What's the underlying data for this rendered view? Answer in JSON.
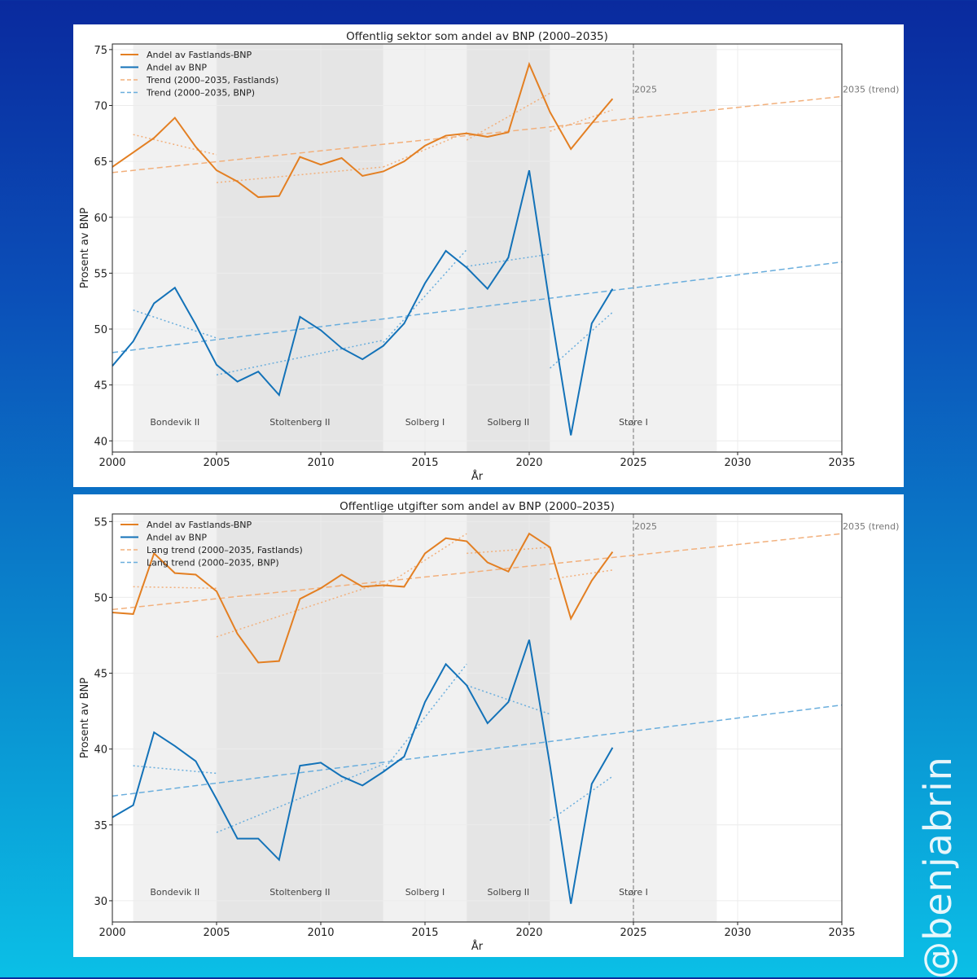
{
  "watermark": "@benjabrin",
  "colors": {
    "orange": "#e37f22",
    "blue": "#1372b8",
    "orange_light": "#f2b07c",
    "blue_light": "#6aaedd",
    "shade_light": "#f1f1f1",
    "shade_dark": "#e5e5e5",
    "grid": "#ececec",
    "marker": "#888888"
  },
  "chart_data": [
    {
      "type": "line",
      "title": "Offentlig sektor som andel av BNP (2000–2035)",
      "xlabel": "År",
      "ylabel": "Prosent av BNP",
      "xlim": [
        2000,
        2035
      ],
      "ylim": [
        39,
        75.5
      ],
      "xticks": [
        "2000",
        "2005",
        "2010",
        "2015",
        "2020",
        "2025",
        "2030",
        "2035"
      ],
      "yticks": [
        "40",
        "45",
        "50",
        "55",
        "60",
        "65",
        "70",
        "75"
      ],
      "legend_position": "top-left",
      "grid": true,
      "periods": [
        {
          "label": "Bondevik II",
          "start": 2001,
          "end": 2005
        },
        {
          "label": "Stoltenberg II",
          "start": 2005,
          "end": 2013
        },
        {
          "label": "Solberg I",
          "start": 2013,
          "end": 2017
        },
        {
          "label": "Solberg II",
          "start": 2017,
          "end": 2021
        },
        {
          "label": "Støre I",
          "start": 2021,
          "end": 2029
        }
      ],
      "marker_2025_label": "2025",
      "trend_end_label": "2035 (trend)",
      "series": [
        {
          "name": "Andel av Fastlands-BNP",
          "x": [
            2000,
            2001,
            2002,
            2003,
            2004,
            2005,
            2006,
            2007,
            2008,
            2009,
            2010,
            2011,
            2012,
            2013,
            2014,
            2015,
            2016,
            2017,
            2018,
            2019,
            2020,
            2021,
            2022,
            2023,
            2024
          ],
          "values": [
            64.5,
            65.8,
            67.1,
            68.9,
            66.3,
            64.2,
            63.2,
            61.8,
            61.9,
            65.4,
            64.7,
            65.3,
            63.7,
            64.1,
            65.0,
            66.4,
            67.3,
            67.5,
            67.2,
            67.6,
            73.7,
            69.4,
            66.1,
            68.4,
            70.6
          ]
        },
        {
          "name": "Andel av BNP",
          "x": [
            2000,
            2001,
            2002,
            2003,
            2004,
            2005,
            2006,
            2007,
            2008,
            2009,
            2010,
            2011,
            2012,
            2013,
            2014,
            2015,
            2016,
            2017,
            2018,
            2019,
            2020,
            2021,
            2022,
            2023,
            2024
          ],
          "values": [
            46.7,
            48.9,
            52.3,
            53.7,
            50.4,
            46.8,
            45.3,
            46.2,
            44.1,
            51.1,
            49.9,
            48.3,
            47.3,
            48.5,
            50.5,
            54.1,
            57.0,
            55.5,
            53.6,
            56.4,
            64.2,
            52.0,
            40.5,
            50.5,
            53.6
          ]
        },
        {
          "name": "Trend (2000–2035, Fastlands)",
          "x": [
            2000,
            2035
          ],
          "values": [
            64.0,
            70.8
          ]
        },
        {
          "name": "Trend (2000–2035, BNP)",
          "x": [
            2000,
            2035
          ],
          "values": [
            47.9,
            56.0
          ]
        }
      ],
      "period_trends": [
        {
          "color": "orange",
          "x": [
            2001,
            2005
          ],
          "values": [
            67.4,
            65.6
          ]
        },
        {
          "color": "orange",
          "x": [
            2005,
            2013
          ],
          "values": [
            63.1,
            64.5
          ]
        },
        {
          "color": "orange",
          "x": [
            2013,
            2017
          ],
          "values": [
            64.5,
            67.6
          ]
        },
        {
          "color": "orange",
          "x": [
            2017,
            2021
          ],
          "values": [
            66.9,
            71.1
          ]
        },
        {
          "color": "orange",
          "x": [
            2021,
            2024
          ],
          "values": [
            67.7,
            69.6
          ]
        },
        {
          "color": "blue",
          "x": [
            2001,
            2005
          ],
          "values": [
            51.7,
            49.2
          ]
        },
        {
          "color": "blue",
          "x": [
            2005,
            2013
          ],
          "values": [
            45.9,
            49.0
          ]
        },
        {
          "color": "blue",
          "x": [
            2013,
            2017
          ],
          "values": [
            48.8,
            57.1
          ]
        },
        {
          "color": "blue",
          "x": [
            2017,
            2021
          ],
          "values": [
            55.6,
            56.7
          ]
        },
        {
          "color": "blue",
          "x": [
            2021,
            2024
          ],
          "values": [
            46.5,
            51.5
          ]
        }
      ]
    },
    {
      "type": "line",
      "title": "Offentlige utgifter som andel av BNP (2000–2035)",
      "xlabel": "År",
      "ylabel": "Prosent av BNP",
      "xlim": [
        2000,
        2035
      ],
      "ylim": [
        28.6,
        55.5
      ],
      "xticks": [
        "2000",
        "2005",
        "2010",
        "2015",
        "2020",
        "2025",
        "2030",
        "2035"
      ],
      "yticks": [
        "30",
        "35",
        "40",
        "45",
        "50",
        "55"
      ],
      "legend_position": "top-left",
      "grid": true,
      "periods": [
        {
          "label": "Bondevik II",
          "start": 2001,
          "end": 2005
        },
        {
          "label": "Stoltenberg II",
          "start": 2005,
          "end": 2013
        },
        {
          "label": "Solberg I",
          "start": 2013,
          "end": 2017
        },
        {
          "label": "Solberg II",
          "start": 2017,
          "end": 2021
        },
        {
          "label": "Støre I",
          "start": 2021,
          "end": 2029
        }
      ],
      "marker_2025_label": "2025",
      "trend_end_label": "2035 (trend)",
      "series": [
        {
          "name": "Andel av Fastlands-BNP",
          "x": [
            2000,
            2001,
            2002,
            2003,
            2004,
            2005,
            2006,
            2007,
            2008,
            2009,
            2010,
            2011,
            2012,
            2013,
            2014,
            2015,
            2016,
            2017,
            2018,
            2019,
            2020,
            2021,
            2022,
            2023,
            2024
          ],
          "values": [
            49.0,
            48.9,
            52.9,
            51.6,
            51.5,
            50.4,
            47.6,
            45.7,
            45.8,
            49.9,
            50.6,
            51.5,
            50.7,
            50.8,
            50.7,
            52.9,
            53.9,
            53.7,
            52.3,
            51.7,
            54.2,
            53.3,
            48.6,
            51.1,
            53.0
          ]
        },
        {
          "name": "Andel av BNP",
          "x": [
            2000,
            2001,
            2002,
            2003,
            2004,
            2005,
            2006,
            2007,
            2008,
            2009,
            2010,
            2011,
            2012,
            2013,
            2014,
            2015,
            2016,
            2017,
            2018,
            2019,
            2020,
            2021,
            2022,
            2023,
            2024
          ],
          "values": [
            35.5,
            36.3,
            41.1,
            40.2,
            39.2,
            36.7,
            34.1,
            34.1,
            32.7,
            38.9,
            39.1,
            38.2,
            37.6,
            38.5,
            39.5,
            43.1,
            45.6,
            44.2,
            41.7,
            43.1,
            47.2,
            38.9,
            29.8,
            37.7,
            40.1
          ]
        },
        {
          "name": "Lang trend (2000–2035, Fastlands)",
          "x": [
            2000,
            2035
          ],
          "values": [
            49.2,
            54.2
          ]
        },
        {
          "name": "Lang trend (2000–2035, BNP)",
          "x": [
            2000,
            2035
          ],
          "values": [
            36.9,
            42.9
          ]
        }
      ],
      "period_trends": [
        {
          "color": "orange",
          "x": [
            2001,
            2005
          ],
          "values": [
            50.7,
            50.6
          ]
        },
        {
          "color": "orange",
          "x": [
            2005,
            2013
          ],
          "values": [
            47.4,
            51.0
          ]
        },
        {
          "color": "orange",
          "x": [
            2013,
            2017
          ],
          "values": [
            50.7,
            54.2
          ]
        },
        {
          "color": "orange",
          "x": [
            2017,
            2021
          ],
          "values": [
            52.9,
            53.3
          ]
        },
        {
          "color": "orange",
          "x": [
            2021,
            2024
          ],
          "values": [
            51.2,
            51.8
          ]
        },
        {
          "color": "blue",
          "x": [
            2001,
            2005
          ],
          "values": [
            38.9,
            38.4
          ]
        },
        {
          "color": "blue",
          "x": [
            2005,
            2013
          ],
          "values": [
            34.5,
            39.0
          ]
        },
        {
          "color": "blue",
          "x": [
            2013,
            2017
          ],
          "values": [
            38.6,
            45.6
          ]
        },
        {
          "color": "blue",
          "x": [
            2017,
            2021
          ],
          "values": [
            44.2,
            42.3
          ]
        },
        {
          "color": "blue",
          "x": [
            2021,
            2024
          ],
          "values": [
            35.3,
            38.2
          ]
        }
      ]
    }
  ]
}
